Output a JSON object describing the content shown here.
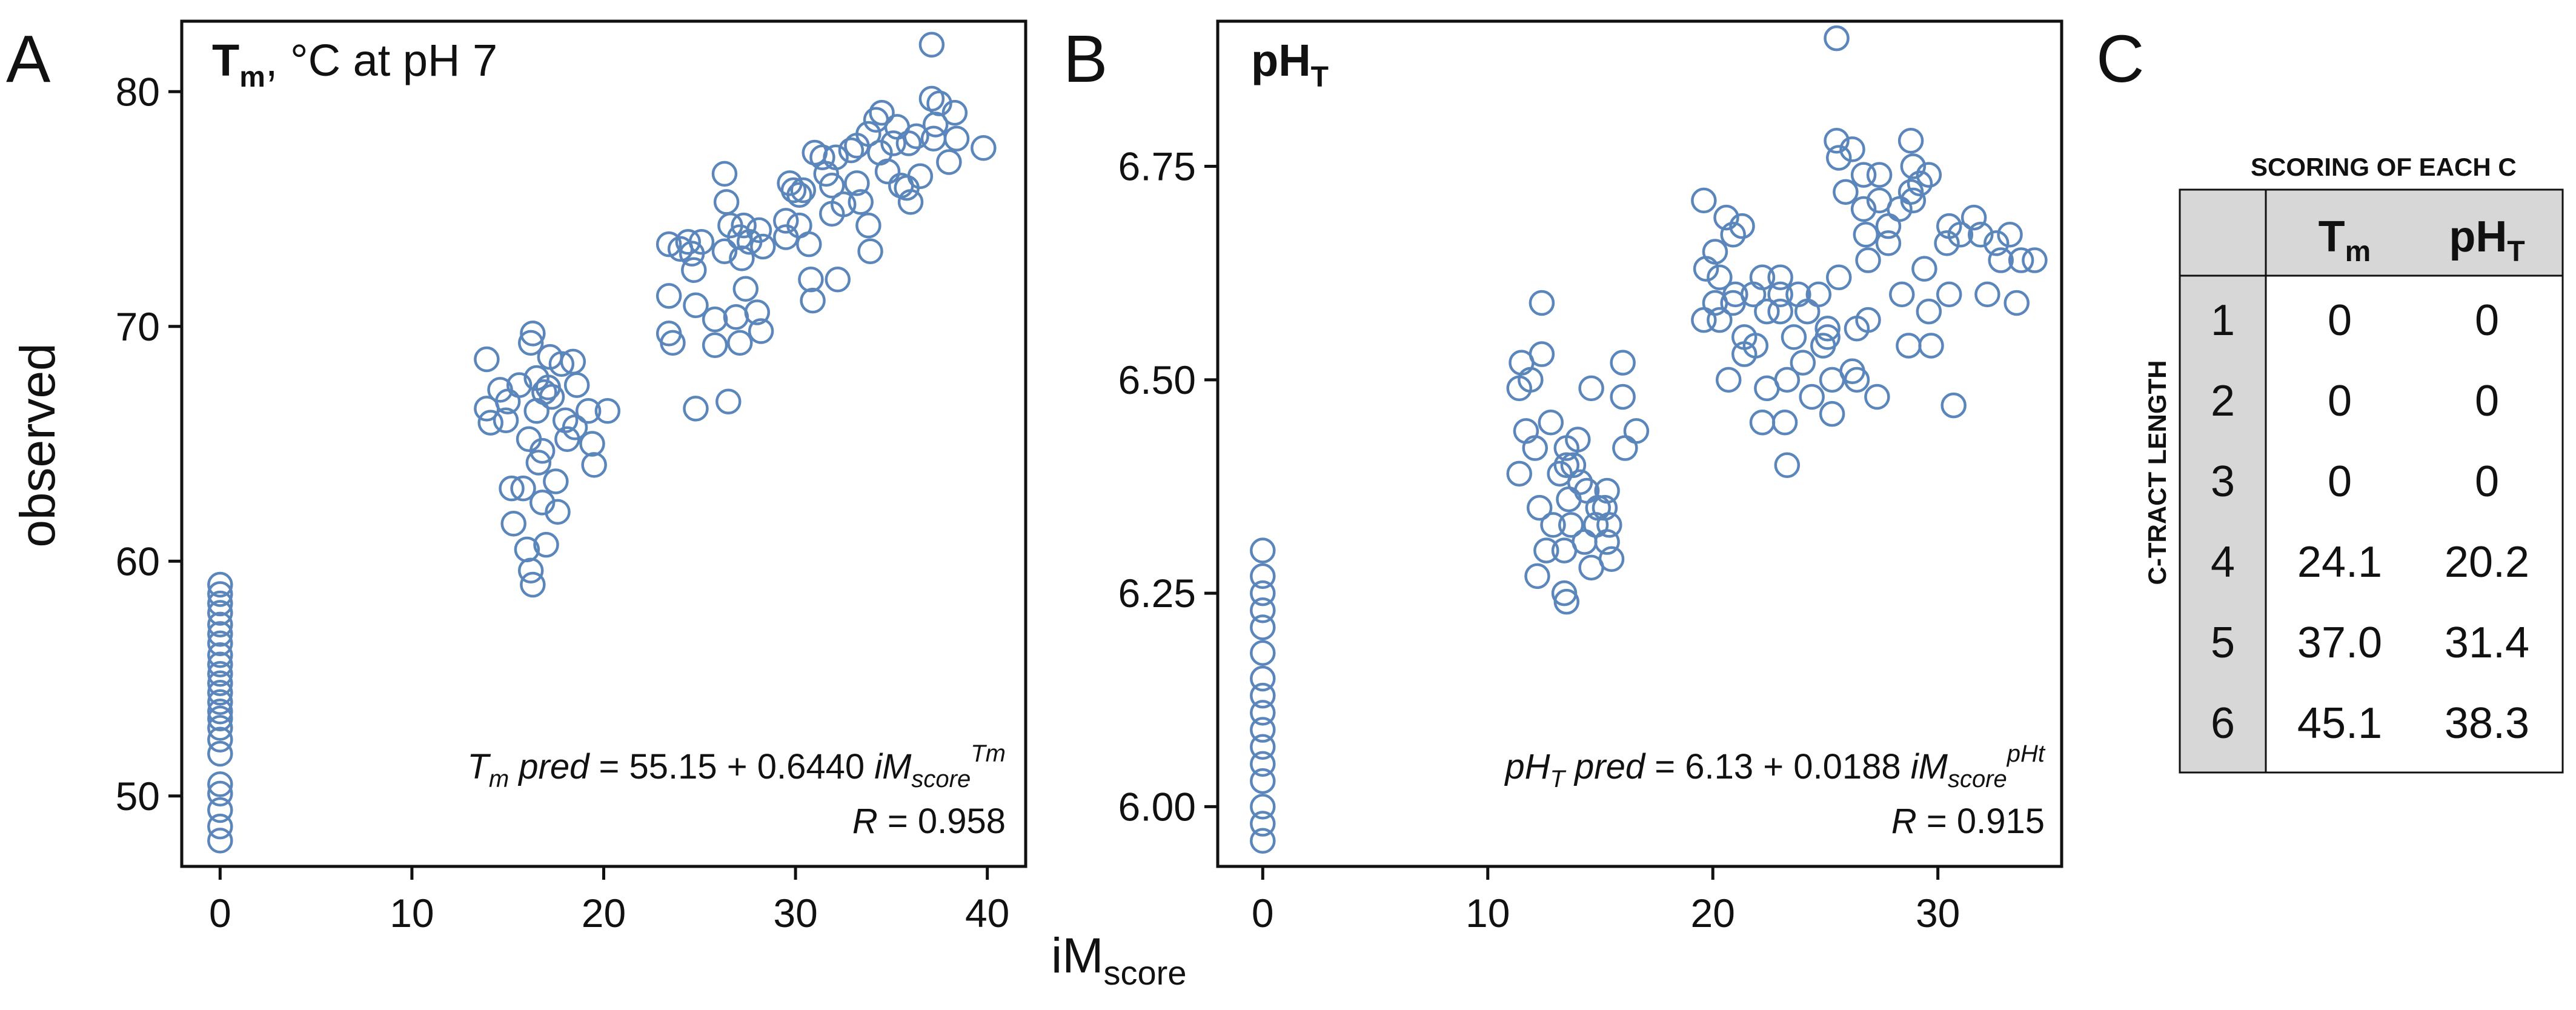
{
  "panels": {
    "a": {
      "letter": "A",
      "title_bold": "T",
      "title_bold_sub": "m",
      "title_rest": ", °C at pH 7",
      "eq_lhs": "T",
      "eq_lhs_sub": "m",
      "eq_pred": " pred",
      "eq_rhs": " = 55.15 + 0.6440 ",
      "eq_im": "iM",
      "eq_im_sub": "score",
      "eq_im_sup": "Tm",
      "r_label": "R",
      "r_value": " = 0.958"
    },
    "b": {
      "letter": "B",
      "title_bold": "pH",
      "title_bold_sub": "T",
      "eq_lhs": "pH",
      "eq_lhs_sub": "T",
      "eq_pred": " pred",
      "eq_rhs": " = 6.13 + 0.0188 ",
      "eq_im": "iM",
      "eq_im_sub": "score",
      "eq_im_sup": "pHt",
      "r_label": "R",
      "r_value": " = 0.915"
    },
    "c": {
      "letter": "C"
    }
  },
  "shared": {
    "ylabel": "observed",
    "xlabel_main": "iM",
    "xlabel_sub": "score"
  },
  "chart_data": [
    {
      "type": "scatter",
      "xlim": [
        -2,
        42
      ],
      "ylim": [
        47,
        83
      ],
      "xticks": [
        0,
        10,
        20,
        30,
        40
      ],
      "yticks": [
        50,
        60,
        70,
        80
      ],
      "ylabel": "observed",
      "xlabel": "iMscore",
      "marker": "open-circle",
      "color": "#5b86bb",
      "points": [
        [
          0,
          48.1
        ],
        [
          0,
          48.7
        ],
        [
          0,
          49.4
        ],
        [
          0,
          50.1
        ],
        [
          0,
          50.5
        ],
        [
          0,
          51.8
        ],
        [
          0,
          52.4
        ],
        [
          0,
          52.9
        ],
        [
          0,
          53.3
        ],
        [
          0,
          53.6
        ],
        [
          0,
          54.0
        ],
        [
          0,
          54.4
        ],
        [
          0,
          54.8
        ],
        [
          0,
          55.2
        ],
        [
          0,
          55.6
        ],
        [
          0,
          56.0
        ],
        [
          0,
          56.5
        ],
        [
          0,
          56.9
        ],
        [
          0,
          57.3
        ],
        [
          0,
          57.8
        ],
        [
          0,
          58.2
        ],
        [
          0,
          58.6
        ],
        [
          0,
          59.0
        ],
        [
          13.9,
          68.6
        ],
        [
          13.9,
          66.5
        ],
        [
          14.1,
          65.9
        ],
        [
          14.6,
          67.3
        ],
        [
          14.9,
          66.0
        ],
        [
          15.2,
          63.1
        ],
        [
          15.3,
          61.6
        ],
        [
          15.6,
          67.5
        ],
        [
          15.8,
          63.1
        ],
        [
          16.0,
          60.5
        ],
        [
          16.2,
          59.6
        ],
        [
          16.3,
          59.0
        ],
        [
          16.1,
          65.2
        ],
        [
          16.3,
          69.7
        ],
        [
          16.2,
          69.3
        ],
        [
          16.5,
          67.8
        ],
        [
          16.5,
          66.4
        ],
        [
          16.8,
          64.7
        ],
        [
          17.0,
          60.7
        ],
        [
          16.8,
          62.5
        ],
        [
          16.9,
          67.2
        ],
        [
          17.2,
          68.7
        ],
        [
          17.3,
          67.0
        ],
        [
          17.5,
          63.4
        ],
        [
          17.6,
          62.1
        ],
        [
          17.8,
          68.4
        ],
        [
          18.0,
          66.0
        ],
        [
          18.1,
          65.2
        ],
        [
          18.4,
          68.5
        ],
        [
          18.5,
          65.7
        ],
        [
          18.6,
          67.5
        ],
        [
          19.2,
          66.4
        ],
        [
          19.4,
          65.0
        ],
        [
          19.5,
          64.1
        ],
        [
          20.2,
          66.4
        ],
        [
          16.6,
          64.2
        ],
        [
          15.0,
          66.8
        ],
        [
          17.1,
          67.4
        ],
        [
          23.4,
          73.5
        ],
        [
          23.4,
          71.3
        ],
        [
          23.4,
          69.7
        ],
        [
          23.6,
          69.3
        ],
        [
          24.0,
          73.3
        ],
        [
          24.4,
          73.6
        ],
        [
          24.6,
          73.1
        ],
        [
          24.7,
          72.4
        ],
        [
          24.8,
          70.9
        ],
        [
          24.8,
          66.5
        ],
        [
          25.1,
          73.6
        ],
        [
          25.8,
          69.2
        ],
        [
          25.8,
          70.3
        ],
        [
          26.3,
          76.5
        ],
        [
          26.4,
          75.3
        ],
        [
          26.6,
          74.3
        ],
        [
          26.5,
          66.8
        ],
        [
          26.3,
          73.2
        ],
        [
          26.9,
          70.4
        ],
        [
          27.1,
          73.8
        ],
        [
          27.3,
          74.3
        ],
        [
          27.2,
          72.9
        ],
        [
          27.1,
          69.3
        ],
        [
          27.4,
          71.6
        ],
        [
          27.6,
          73.6
        ],
        [
          28.0,
          70.6
        ],
        [
          28.2,
          69.8
        ],
        [
          28.3,
          73.4
        ],
        [
          28.1,
          74.1
        ],
        [
          29.5,
          74.5
        ],
        [
          29.5,
          73.8
        ],
        [
          29.7,
          76.1
        ],
        [
          29.9,
          75.8
        ],
        [
          30.2,
          74.3
        ],
        [
          30.2,
          75.6
        ],
        [
          30.4,
          75.8
        ],
        [
          30.7,
          73.5
        ],
        [
          30.9,
          71.1
        ],
        [
          30.8,
          72.0
        ],
        [
          31.0,
          77.4
        ],
        [
          31.4,
          77.2
        ],
        [
          31.9,
          76.0
        ],
        [
          31.9,
          74.8
        ],
        [
          32.1,
          77.2
        ],
        [
          32.2,
          72.0
        ],
        [
          32.5,
          75.2
        ],
        [
          32.9,
          77.5
        ],
        [
          33.2,
          76.1
        ],
        [
          33.4,
          75.3
        ],
        [
          33.8,
          74.3
        ],
        [
          33.9,
          73.2
        ],
        [
          33.8,
          78.2
        ],
        [
          34.2,
          78.8
        ],
        [
          34.5,
          79.1
        ],
        [
          34.4,
          77.4
        ],
        [
          34.8,
          76.6
        ],
        [
          35.3,
          78.5
        ],
        [
          35.1,
          77.8
        ],
        [
          35.5,
          76.0
        ],
        [
          35.9,
          77.8
        ],
        [
          36.0,
          75.3
        ],
        [
          36.3,
          78.1
        ],
        [
          37.1,
          79.7
        ],
        [
          37.1,
          82.0
        ],
        [
          37.2,
          78.0
        ],
        [
          37.3,
          78.6
        ],
        [
          37.5,
          79.5
        ],
        [
          38.3,
          79.1
        ],
        [
          38.0,
          77.0
        ],
        [
          38.4,
          78.0
        ],
        [
          39.8,
          77.6
        ],
        [
          36.5,
          76.4
        ],
        [
          33.2,
          77.7
        ],
        [
          31.6,
          76.5
        ],
        [
          35.8,
          75.9
        ]
      ]
    },
    {
      "type": "scatter",
      "xlim": [
        -2,
        35.5
      ],
      "ylim": [
        5.93,
        6.92
      ],
      "xticks": [
        0,
        10,
        20,
        30
      ],
      "yticks": [
        6.0,
        6.25,
        6.5,
        6.75
      ],
      "ylabel": "",
      "xlabel": "iMscore",
      "marker": "open-circle",
      "color": "#5b86bb",
      "points": [
        [
          0,
          5.96
        ],
        [
          0,
          5.98
        ],
        [
          0,
          6.0
        ],
        [
          0,
          6.03
        ],
        [
          0,
          6.05
        ],
        [
          0,
          6.07
        ],
        [
          0,
          6.09
        ],
        [
          0,
          6.11
        ],
        [
          0,
          6.13
        ],
        [
          0,
          6.15
        ],
        [
          0,
          6.18
        ],
        [
          0,
          6.21
        ],
        [
          0,
          6.23
        ],
        [
          0,
          6.25
        ],
        [
          0,
          6.27
        ],
        [
          0,
          6.3
        ],
        [
          11.5,
          6.52
        ],
        [
          11.4,
          6.49
        ],
        [
          11.4,
          6.39
        ],
        [
          11.7,
          6.44
        ],
        [
          11.9,
          6.5
        ],
        [
          12.1,
          6.42
        ],
        [
          12.2,
          6.27
        ],
        [
          12.3,
          6.35
        ],
        [
          12.4,
          6.59
        ],
        [
          12.4,
          6.53
        ],
        [
          12.6,
          6.3
        ],
        [
          12.9,
          6.33
        ],
        [
          12.8,
          6.45
        ],
        [
          13.2,
          6.39
        ],
        [
          13.4,
          6.25
        ],
        [
          13.5,
          6.24
        ],
        [
          13.4,
          6.3
        ],
        [
          13.5,
          6.42
        ],
        [
          13.6,
          6.36
        ],
        [
          13.5,
          6.4
        ],
        [
          13.7,
          6.33
        ],
        [
          14.0,
          6.43
        ],
        [
          14.1,
          6.38
        ],
        [
          14.3,
          6.31
        ],
        [
          14.4,
          6.37
        ],
        [
          14.6,
          6.28
        ],
        [
          14.6,
          6.49
        ],
        [
          14.8,
          6.33
        ],
        [
          15.3,
          6.37
        ],
        [
          15.2,
          6.35
        ],
        [
          15.4,
          6.33
        ],
        [
          15.5,
          6.29
        ],
        [
          16.0,
          6.52
        ],
        [
          16.0,
          6.48
        ],
        [
          16.1,
          6.42
        ],
        [
          16.6,
          6.44
        ],
        [
          15.3,
          6.31
        ],
        [
          13.8,
          6.4
        ],
        [
          14.9,
          6.35
        ],
        [
          19.6,
          6.71
        ],
        [
          19.6,
          6.57
        ],
        [
          19.7,
          6.63
        ],
        [
          20.1,
          6.65
        ],
        [
          20.1,
          6.59
        ],
        [
          20.3,
          6.62
        ],
        [
          20.3,
          6.57
        ],
        [
          20.6,
          6.69
        ],
        [
          20.9,
          6.67
        ],
        [
          20.9,
          6.59
        ],
        [
          20.7,
          6.5
        ],
        [
          21.0,
          6.6
        ],
        [
          21.3,
          6.68
        ],
        [
          21.4,
          6.55
        ],
        [
          21.4,
          6.53
        ],
        [
          21.8,
          6.6
        ],
        [
          21.9,
          6.54
        ],
        [
          22.2,
          6.45
        ],
        [
          22.2,
          6.62
        ],
        [
          22.4,
          6.58
        ],
        [
          22.4,
          6.49
        ],
        [
          23.0,
          6.62
        ],
        [
          23.0,
          6.6
        ],
        [
          23.0,
          6.58
        ],
        [
          23.3,
          6.5
        ],
        [
          23.2,
          6.45
        ],
        [
          23.3,
          6.4
        ],
        [
          23.6,
          6.55
        ],
        [
          23.8,
          6.6
        ],
        [
          24.0,
          6.52
        ],
        [
          24.2,
          6.58
        ],
        [
          24.4,
          6.48
        ],
        [
          24.7,
          6.6
        ],
        [
          25.1,
          6.56
        ],
        [
          25.1,
          6.55
        ],
        [
          25.3,
          6.5
        ],
        [
          25.3,
          6.46
        ],
        [
          25.5,
          6.78
        ],
        [
          25.6,
          6.76
        ],
        [
          25.5,
          6.9
        ],
        [
          25.6,
          6.62
        ],
        [
          25.9,
          6.72
        ],
        [
          26.2,
          6.77
        ],
        [
          26.2,
          6.51
        ],
        [
          26.4,
          6.56
        ],
        [
          26.4,
          6.5
        ],
        [
          26.7,
          6.74
        ],
        [
          26.7,
          6.7
        ],
        [
          26.8,
          6.67
        ],
        [
          26.9,
          6.64
        ],
        [
          27.3,
          6.48
        ],
        [
          27.4,
          6.74
        ],
        [
          27.4,
          6.71
        ],
        [
          27.8,
          6.66
        ],
        [
          27.8,
          6.68
        ],
        [
          28.3,
          6.7
        ],
        [
          28.4,
          6.6
        ],
        [
          28.8,
          6.78
        ],
        [
          28.9,
          6.75
        ],
        [
          28.8,
          6.72
        ],
        [
          28.9,
          6.71
        ],
        [
          28.7,
          6.54
        ],
        [
          29.2,
          6.73
        ],
        [
          29.4,
          6.63
        ],
        [
          29.6,
          6.74
        ],
        [
          29.6,
          6.58
        ],
        [
          29.7,
          6.54
        ],
        [
          30.4,
          6.66
        ],
        [
          30.5,
          6.68
        ],
        [
          30.5,
          6.6
        ],
        [
          30.7,
          6.47
        ],
        [
          31.0,
          6.67
        ],
        [
          31.6,
          6.69
        ],
        [
          31.9,
          6.67
        ],
        [
          32.2,
          6.6
        ],
        [
          32.6,
          6.66
        ],
        [
          32.8,
          6.64
        ],
        [
          33.2,
          6.67
        ],
        [
          33.5,
          6.59
        ],
        [
          33.7,
          6.64
        ],
        [
          34.3,
          6.64
        ],
        [
          24.9,
          6.54
        ],
        [
          26.9,
          6.57
        ]
      ]
    }
  ],
  "table": {
    "title": "SCORING OF EACH C",
    "row_header": "C-TRACT LENGTH",
    "col_tm": "T",
    "col_tm_sub": "m",
    "col_ph": "pH",
    "col_ph_sub": "T",
    "rows": [
      {
        "len": "1",
        "tm": "0",
        "ph": "0"
      },
      {
        "len": "2",
        "tm": "0",
        "ph": "0"
      },
      {
        "len": "3",
        "tm": "0",
        "ph": "0"
      },
      {
        "len": "4",
        "tm": "24.1",
        "ph": "20.2"
      },
      {
        "len": "5",
        "tm": "37.0",
        "ph": "31.4"
      },
      {
        "len": "6",
        "tm": "45.1",
        "ph": "38.3"
      }
    ]
  }
}
